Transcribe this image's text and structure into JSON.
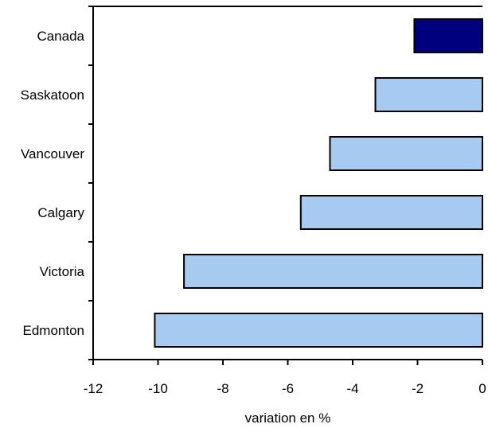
{
  "chart_data": {
    "type": "bar",
    "orientation": "horizontal",
    "title": "",
    "xlabel": "variation en %",
    "ylabel": "",
    "categories": [
      "Canada",
      "Saskatoon",
      "Vancouver",
      "Calgary",
      "Victoria",
      "Edmonton"
    ],
    "values": [
      -2.1,
      -3.3,
      -4.7,
      -5.6,
      -9.2,
      -10.1
    ],
    "highlight_category": "Canada",
    "xlim": [
      -12,
      0
    ],
    "xticks": [
      -12,
      -10,
      -8,
      -6,
      -4,
      -2,
      0
    ],
    "xtick_labels": [
      "-12",
      "-10",
      "-8",
      "-6",
      "-4",
      "-2",
      "0"
    ],
    "grid": false,
    "legend": "none",
    "colors": {
      "highlight": "#00007f",
      "bar": "#a6caf0",
      "outline": "#000000"
    }
  }
}
